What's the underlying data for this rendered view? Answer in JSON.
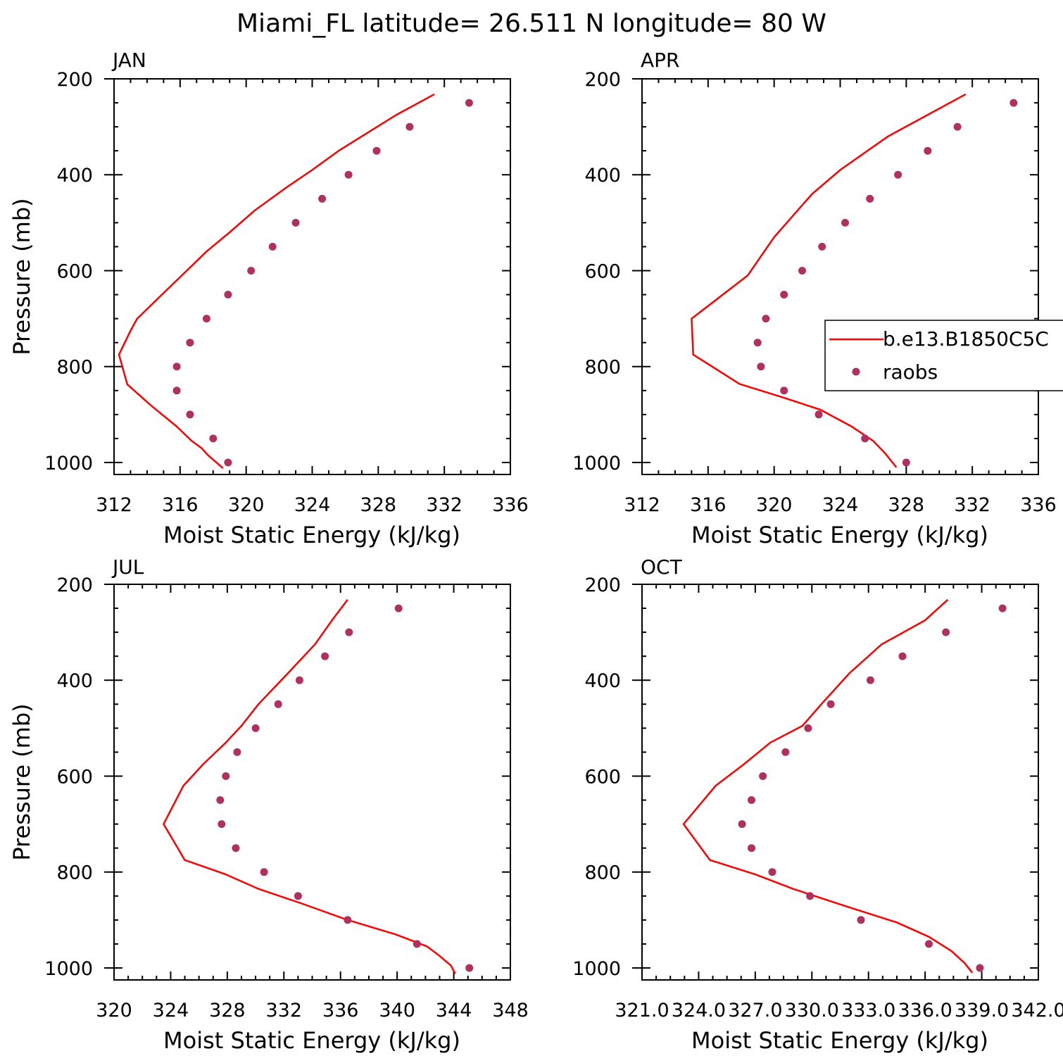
{
  "title": "Miami_FL  latitude= 26.511 N longitude= 80 W",
  "legend": {
    "model": "b.e13.B1850C5C",
    "obs": "raobs"
  },
  "colors": {
    "model": "#ff0000",
    "obs": "#b03060",
    "axis": "#000000"
  },
  "chart_data": [
    {
      "type": "line",
      "panel": "JAN",
      "xlabel": "Moist Static Energy (kJ/kg)",
      "ylabel": "Pressure (mb)",
      "xlim": [
        312,
        336
      ],
      "x_ticks": [
        "312",
        "316",
        "320",
        "324",
        "328",
        "332",
        "336"
      ],
      "x_tick_values": [
        312,
        316,
        320,
        324,
        328,
        332,
        336
      ],
      "ylim": [
        200,
        1025
      ],
      "y_ticks": [
        "200",
        "400",
        "600",
        "800",
        "1000"
      ],
      "y_tick_values": [
        200,
        400,
        600,
        800,
        1000
      ],
      "legend_placement": "none",
      "series": [
        {
          "name": "b.e13.B1850C5C",
          "kind": "line",
          "points": [
            [
              331.4,
              232
            ],
            [
              329.1,
              275
            ],
            [
              327,
              320
            ],
            [
              325.6,
              350
            ],
            [
              324,
              390
            ],
            [
              322.5,
              425
            ],
            [
              320.5,
              475
            ],
            [
              319,
              520
            ],
            [
              317.6,
              560
            ],
            [
              316.4,
              600
            ],
            [
              314.9,
              650
            ],
            [
              313.4,
              700
            ],
            [
              313,
              725
            ],
            [
              312.3,
              775
            ],
            [
              312.8,
              837
            ],
            [
              314.2,
              880
            ],
            [
              315.8,
              925
            ],
            [
              316.7,
              955
            ],
            [
              317.3,
              970
            ],
            [
              317.7,
              985
            ],
            [
              318.6,
              1012
            ]
          ]
        },
        {
          "name": "raobs",
          "kind": "scatter",
          "points": [
            [
              333.5,
              250
            ],
            [
              329.9,
              300
            ],
            [
              327.9,
              350
            ],
            [
              326.2,
              400
            ],
            [
              324.6,
              450
            ],
            [
              323,
              500
            ],
            [
              321.6,
              550
            ],
            [
              320.3,
              600
            ],
            [
              318.9,
              650
            ],
            [
              317.6,
              700
            ],
            [
              316.6,
              750
            ],
            [
              315.8,
              800
            ],
            [
              315.8,
              850
            ],
            [
              316.6,
              900
            ],
            [
              318,
              950
            ],
            [
              318.9,
              1000
            ]
          ]
        }
      ]
    },
    {
      "type": "line",
      "panel": "APR",
      "xlabel": "Moist Static Energy (kJ/kg)",
      "ylabel": "",
      "xlim": [
        312,
        336
      ],
      "x_ticks": [
        "312",
        "316",
        "320",
        "324",
        "328",
        "332",
        "336"
      ],
      "x_tick_values": [
        312,
        316,
        320,
        324,
        328,
        332,
        336
      ],
      "ylim": [
        200,
        1025
      ],
      "y_ticks": [
        "200",
        "400",
        "600",
        "800",
        "1000"
      ],
      "y_tick_values": [
        200,
        400,
        600,
        800,
        1000
      ],
      "legend_placement": "right",
      "series": [
        {
          "name": "b.e13.B1850C5C",
          "kind": "line",
          "points": [
            [
              331.6,
              232
            ],
            [
              329.3,
              275
            ],
            [
              326.9,
              320
            ],
            [
              324,
              390
            ],
            [
              322.3,
              440
            ],
            [
              320,
              530
            ],
            [
              318.4,
              610
            ],
            [
              315,
              700
            ],
            [
              315.1,
              775
            ],
            [
              317.9,
              836
            ],
            [
              320.5,
              864
            ],
            [
              322.8,
              890
            ],
            [
              324.7,
              925
            ],
            [
              326,
              955
            ],
            [
              326.7,
              980
            ],
            [
              327.4,
              1010
            ]
          ]
        },
        {
          "name": "raobs",
          "kind": "scatter",
          "points": [
            [
              334.5,
              250
            ],
            [
              331.1,
              300
            ],
            [
              329.3,
              350
            ],
            [
              327.5,
              400
            ],
            [
              325.8,
              450
            ],
            [
              324.3,
              500
            ],
            [
              322.9,
              550
            ],
            [
              321.7,
              600
            ],
            [
              320.6,
              650
            ],
            [
              319.5,
              700
            ],
            [
              319,
              750
            ],
            [
              319.2,
              800
            ],
            [
              320.6,
              850
            ],
            [
              322.7,
              900
            ],
            [
              325.5,
              950
            ],
            [
              328,
              1000
            ]
          ]
        }
      ]
    },
    {
      "type": "line",
      "panel": "JUL",
      "xlabel": "Moist Static Energy (kJ/kg)",
      "ylabel": "Pressure (mb)",
      "xlim": [
        320,
        348
      ],
      "x_ticks": [
        "320",
        "324",
        "328",
        "332",
        "336",
        "340",
        "344",
        "348"
      ],
      "x_tick_values": [
        320,
        324,
        328,
        332,
        336,
        340,
        344,
        348
      ],
      "ylim": [
        200,
        1025
      ],
      "y_ticks": [
        "200",
        "400",
        "600",
        "800",
        "1000"
      ],
      "y_tick_values": [
        200,
        400,
        600,
        800,
        1000
      ],
      "legend_placement": "none",
      "series": [
        {
          "name": "b.e13.B1850C5C",
          "kind": "line",
          "points": [
            [
              336.5,
              232
            ],
            [
              335.4,
              275
            ],
            [
              334.2,
              325
            ],
            [
              332.3,
              385
            ],
            [
              330.2,
              450
            ],
            [
              329,
              495
            ],
            [
              327.9,
              530
            ],
            [
              326.3,
              575
            ],
            [
              324.9,
              620
            ],
            [
              323.5,
              700
            ],
            [
              325,
              775
            ],
            [
              327.9,
              805
            ],
            [
              330.2,
              835
            ],
            [
              333.2,
              865
            ],
            [
              336.5,
              900
            ],
            [
              339.9,
              930
            ],
            [
              342.1,
              955
            ],
            [
              343,
              975
            ],
            [
              343.8,
              995
            ],
            [
              344.1,
              1012
            ]
          ]
        },
        {
          "name": "raobs",
          "kind": "scatter",
          "points": [
            [
              340.1,
              250
            ],
            [
              336.6,
              300
            ],
            [
              334.9,
              350
            ],
            [
              333.1,
              400
            ],
            [
              331.6,
              450
            ],
            [
              330,
              500
            ],
            [
              328.7,
              550
            ],
            [
              327.9,
              600
            ],
            [
              327.5,
              650
            ],
            [
              327.6,
              700
            ],
            [
              328.6,
              750
            ],
            [
              330.6,
              800
            ],
            [
              333,
              850
            ],
            [
              336.5,
              900
            ],
            [
              341.4,
              950
            ],
            [
              345.1,
              1000
            ]
          ]
        }
      ]
    },
    {
      "type": "line",
      "panel": "OCT",
      "xlabel": "Moist Static Energy (kJ/kg)",
      "ylabel": "",
      "xlim": [
        321,
        342
      ],
      "x_ticks": [
        "321.0",
        "324.0",
        "327.0",
        "330.0",
        "333.0",
        "336.0",
        "339.0",
        "342.0"
      ],
      "x_tick_values": [
        321,
        324,
        327,
        330,
        333,
        336,
        339,
        342
      ],
      "ylim": [
        200,
        1025
      ],
      "y_ticks": [
        "200",
        "400",
        "600",
        "800",
        "1000"
      ],
      "y_tick_values": [
        200,
        400,
        600,
        800,
        1000
      ],
      "legend_placement": "none",
      "series": [
        {
          "name": "b.e13.B1850C5C",
          "kind": "line",
          "points": [
            [
              337.2,
              232
            ],
            [
              336,
              275
            ],
            [
              333.7,
              325
            ],
            [
              332,
              385
            ],
            [
              330.5,
              450
            ],
            [
              329.5,
              495
            ],
            [
              327.8,
              530
            ],
            [
              326.4,
              575
            ],
            [
              324.9,
              620
            ],
            [
              323.2,
              700
            ],
            [
              324.6,
              775
            ],
            [
              327,
              805
            ],
            [
              329,
              835
            ],
            [
              331.7,
              870
            ],
            [
              334.5,
              905
            ],
            [
              336.2,
              935
            ],
            [
              337.4,
              965
            ],
            [
              338.1,
              990
            ],
            [
              338.5,
              1010
            ]
          ]
        },
        {
          "name": "raobs",
          "kind": "scatter",
          "points": [
            [
              340.1,
              250
            ],
            [
              337.1,
              300
            ],
            [
              334.8,
              350
            ],
            [
              333.1,
              400
            ],
            [
              331,
              450
            ],
            [
              329.8,
              500
            ],
            [
              328.6,
              550
            ],
            [
              327.4,
              600
            ],
            [
              326.8,
              650
            ],
            [
              326.3,
              700
            ],
            [
              326.8,
              750
            ],
            [
              327.9,
              800
            ],
            [
              329.9,
              850
            ],
            [
              332.6,
              900
            ],
            [
              336.2,
              950
            ],
            [
              338.9,
              1000
            ]
          ]
        }
      ]
    }
  ]
}
